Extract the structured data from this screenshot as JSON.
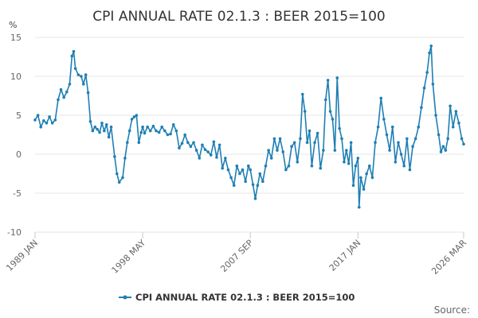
{
  "chart_data": {
    "type": "line",
    "title": "CPI ANNUAL RATE 02.1.3 : BEER 2015=100",
    "ylabel": "%",
    "xlabel": "",
    "ylim": [
      -10,
      15
    ],
    "yticks": [
      -10,
      -5,
      0,
      5,
      10,
      15
    ],
    "x_tick_labels": [
      "1989 JAN",
      "1998 MAY",
      "2007 SEP",
      "2017 JAN",
      "2026 MAR"
    ],
    "x_tick_dates": [
      1989.0,
      1998.333,
      2007.667,
      2017.0,
      2026.167
    ],
    "xlim": [
      1989.0,
      2026.167
    ],
    "grid": true,
    "legend": "bottom",
    "source_label": "Source:",
    "series": [
      {
        "name": "CPI ANNUAL RATE 02.1.3 : BEER 2015=100",
        "color": "#1f7fb4",
        "points": [
          [
            1989.0,
            4.4
          ],
          [
            1989.25,
            5.0
          ],
          [
            1989.5,
            3.5
          ],
          [
            1989.75,
            4.3
          ],
          [
            1990.0,
            4.0
          ],
          [
            1990.25,
            4.8
          ],
          [
            1990.5,
            4.0
          ],
          [
            1990.75,
            4.4
          ],
          [
            1991.0,
            7.0
          ],
          [
            1991.25,
            8.3
          ],
          [
            1991.5,
            7.3
          ],
          [
            1991.75,
            8.0
          ],
          [
            1992.0,
            9.0
          ],
          [
            1992.2,
            12.6
          ],
          [
            1992.35,
            13.2
          ],
          [
            1992.5,
            11.0
          ],
          [
            1992.75,
            10.2
          ],
          [
            1993.0,
            10.0
          ],
          [
            1993.2,
            9.0
          ],
          [
            1993.4,
            10.2
          ],
          [
            1993.6,
            7.9
          ],
          [
            1993.8,
            4.2
          ],
          [
            1994.0,
            3.0
          ],
          [
            1994.2,
            3.5
          ],
          [
            1994.4,
            3.2
          ],
          [
            1994.6,
            2.8
          ],
          [
            1994.8,
            4.0
          ],
          [
            1995.0,
            3.0
          ],
          [
            1995.2,
            3.8
          ],
          [
            1995.4,
            2.2
          ],
          [
            1995.6,
            3.5
          ],
          [
            1995.9,
            -0.3
          ],
          [
            1996.1,
            -2.5
          ],
          [
            1996.3,
            -3.6
          ],
          [
            1996.6,
            -3.0
          ],
          [
            1996.8,
            -0.5
          ],
          [
            1997.0,
            1.5
          ],
          [
            1997.2,
            3.0
          ],
          [
            1997.4,
            4.5
          ],
          [
            1997.6,
            4.8
          ],
          [
            1997.8,
            5.0
          ],
          [
            1998.0,
            1.5
          ],
          [
            1998.2,
            2.8
          ],
          [
            1998.333,
            3.5
          ],
          [
            1998.5,
            2.7
          ],
          [
            1998.75,
            3.5
          ],
          [
            1999.0,
            3.0
          ],
          [
            1999.25,
            3.6
          ],
          [
            1999.5,
            3.0
          ],
          [
            1999.75,
            2.8
          ],
          [
            2000.0,
            3.5
          ],
          [
            2000.25,
            3.0
          ],
          [
            2000.5,
            2.5
          ],
          [
            2000.75,
            2.6
          ],
          [
            2001.0,
            3.8
          ],
          [
            2001.25,
            3.0
          ],
          [
            2001.5,
            0.8
          ],
          [
            2001.75,
            1.4
          ],
          [
            2002.0,
            2.5
          ],
          [
            2002.25,
            1.5
          ],
          [
            2002.5,
            1.0
          ],
          [
            2002.75,
            1.5
          ],
          [
            2003.0,
            0.5
          ],
          [
            2003.25,
            -0.5
          ],
          [
            2003.5,
            1.2
          ],
          [
            2003.75,
            0.6
          ],
          [
            2004.0,
            0.3
          ],
          [
            2004.25,
            -0.1
          ],
          [
            2004.5,
            1.6
          ],
          [
            2004.75,
            -0.4
          ],
          [
            2005.0,
            1.2
          ],
          [
            2005.25,
            -1.8
          ],
          [
            2005.5,
            -0.5
          ],
          [
            2005.75,
            -2.0
          ],
          [
            2006.0,
            -3.0
          ],
          [
            2006.25,
            -4.0
          ],
          [
            2006.5,
            -1.5
          ],
          [
            2006.75,
            -2.5
          ],
          [
            2007.0,
            -2.0
          ],
          [
            2007.25,
            -3.5
          ],
          [
            2007.5,
            -1.5
          ],
          [
            2007.667,
            -2.0
          ],
          [
            2007.9,
            -3.9
          ],
          [
            2008.1,
            -5.7
          ],
          [
            2008.3,
            -4.0
          ],
          [
            2008.5,
            -2.5
          ],
          [
            2008.75,
            -3.5
          ],
          [
            2009.0,
            -1.5
          ],
          [
            2009.25,
            0.5
          ],
          [
            2009.5,
            -0.5
          ],
          [
            2009.75,
            2.0
          ],
          [
            2010.0,
            0.5
          ],
          [
            2010.25,
            2.0
          ],
          [
            2010.5,
            0.3
          ],
          [
            2010.75,
            -2.0
          ],
          [
            2011.0,
            -1.5
          ],
          [
            2011.25,
            1.0
          ],
          [
            2011.5,
            1.5
          ],
          [
            2011.75,
            -1.0
          ],
          [
            2012.0,
            2.0
          ],
          [
            2012.2,
            7.7
          ],
          [
            2012.4,
            5.5
          ],
          [
            2012.6,
            1.5
          ],
          [
            2012.8,
            3.0
          ],
          [
            2013.0,
            -1.5
          ],
          [
            2013.25,
            1.5
          ],
          [
            2013.5,
            2.7
          ],
          [
            2013.75,
            -1.8
          ],
          [
            2014.0,
            0.5
          ],
          [
            2014.2,
            7.0
          ],
          [
            2014.4,
            9.5
          ],
          [
            2014.6,
            5.5
          ],
          [
            2014.8,
            4.5
          ],
          [
            2015.0,
            0.5
          ],
          [
            2015.2,
            9.8
          ],
          [
            2015.4,
            3.3
          ],
          [
            2015.6,
            2.0
          ],
          [
            2015.8,
            -1.0
          ],
          [
            2016.0,
            0.5
          ],
          [
            2016.2,
            -1.2
          ],
          [
            2016.4,
            1.5
          ],
          [
            2016.6,
            -4.0
          ],
          [
            2016.8,
            -1.5
          ],
          [
            2017.0,
            -0.5
          ],
          [
            2017.1,
            -6.8
          ],
          [
            2017.25,
            -3.0
          ],
          [
            2017.5,
            -4.5
          ],
          [
            2017.75,
            -2.5
          ],
          [
            2018.0,
            -1.5
          ],
          [
            2018.25,
            -3.0
          ],
          [
            2018.5,
            1.5
          ],
          [
            2018.75,
            3.5
          ],
          [
            2019.0,
            7.2
          ],
          [
            2019.25,
            4.5
          ],
          [
            2019.5,
            2.5
          ],
          [
            2019.75,
            0.5
          ],
          [
            2020.0,
            3.5
          ],
          [
            2020.25,
            -1.0
          ],
          [
            2020.5,
            1.5
          ],
          [
            2020.75,
            0.0
          ],
          [
            2021.0,
            -1.5
          ],
          [
            2021.25,
            2.0
          ],
          [
            2021.5,
            -2.0
          ],
          [
            2021.75,
            1.0
          ],
          [
            2022.0,
            2.0
          ],
          [
            2022.25,
            3.5
          ],
          [
            2022.5,
            6.0
          ],
          [
            2022.75,
            8.5
          ],
          [
            2023.0,
            10.5
          ],
          [
            2023.2,
            13.0
          ],
          [
            2023.35,
            13.9
          ],
          [
            2023.5,
            9.0
          ],
          [
            2023.75,
            5.0
          ],
          [
            2024.0,
            2.5
          ],
          [
            2024.2,
            0.3
          ],
          [
            2024.4,
            1.0
          ],
          [
            2024.6,
            0.5
          ],
          [
            2024.8,
            2.0
          ],
          [
            2025.0,
            6.2
          ],
          [
            2025.25,
            3.5
          ],
          [
            2025.5,
            5.5
          ],
          [
            2025.75,
            4.0
          ],
          [
            2026.0,
            2.0
          ],
          [
            2026.167,
            1.3
          ]
        ]
      }
    ]
  }
}
